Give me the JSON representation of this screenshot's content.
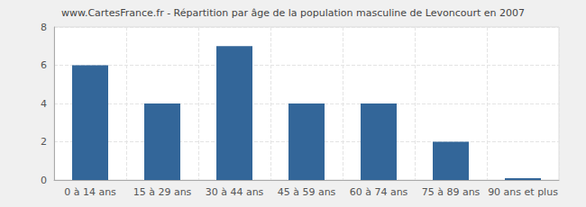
{
  "chart_data": {
    "type": "bar",
    "title": "www.CartesFrance.fr - Répartition par âge de la population masculine de Levoncourt en 2007",
    "categories": [
      "0 à 14 ans",
      "15 à 29 ans",
      "30 à 44 ans",
      "45 à 59 ans",
      "60 à 74 ans",
      "75 à 89 ans",
      "90 ans et plus"
    ],
    "values": [
      6,
      4,
      7,
      4,
      4,
      2,
      0
    ],
    "color": "#336699",
    "ylim": [
      0,
      8
    ],
    "yticks": [
      0,
      2,
      4,
      6,
      8
    ],
    "grid": true
  }
}
